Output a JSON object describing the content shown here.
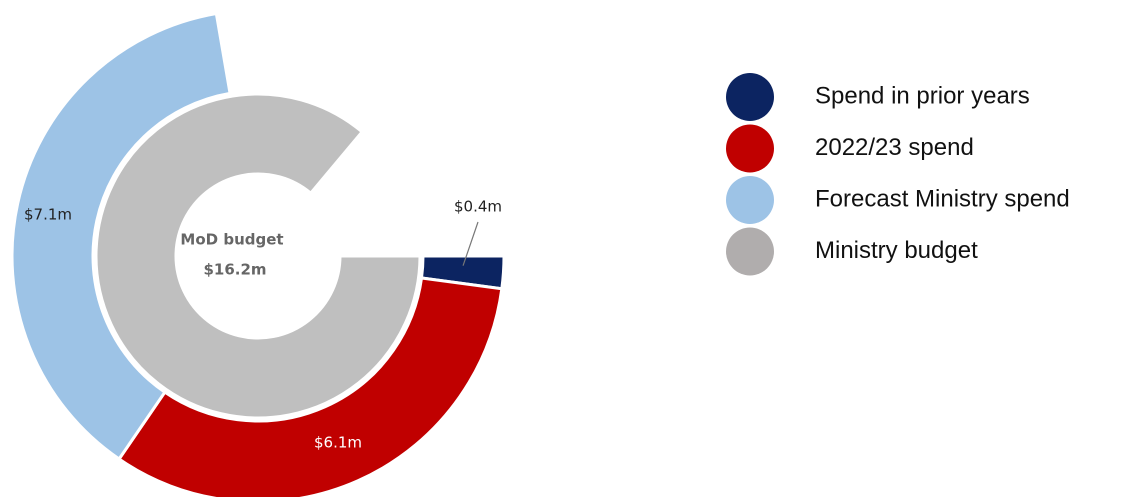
{
  "chart_data": {
    "type": "donut",
    "series": [
      {
        "name": "Spend in prior years",
        "color": "#0c2461",
        "value": 0.4,
        "value_label": "$0.4m",
        "ring": "outer"
      },
      {
        "name": "2022/23 spend",
        "color": "#c00000",
        "value": 6.1,
        "value_label": "$6.1m",
        "ring": "outer"
      },
      {
        "name": "Forecast Ministry spend",
        "color": "#9dc3e6",
        "value": 7.1,
        "value_label": "$7.1m",
        "ring": "outer"
      },
      {
        "name": "Ministry budget",
        "color": "#bfbfbf",
        "value": 16.2,
        "value_label": "$16.2m",
        "ring": "inner",
        "legend_color": "#b0adad"
      }
    ],
    "center_label": "MoD budget",
    "legend": "right"
  }
}
